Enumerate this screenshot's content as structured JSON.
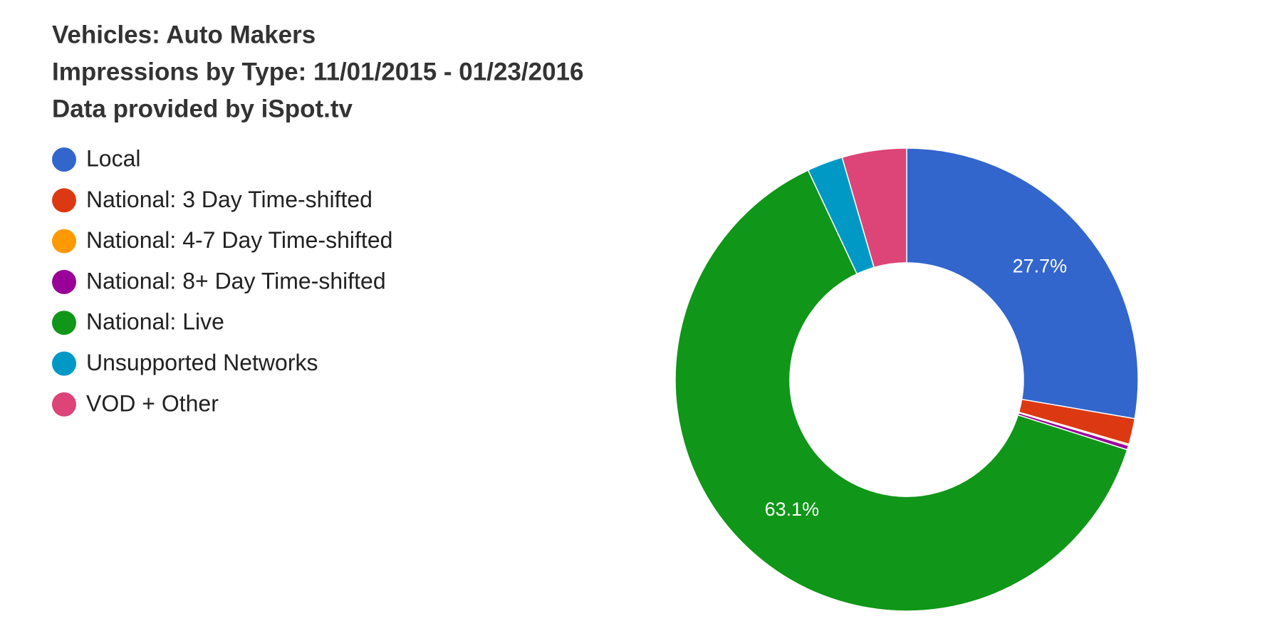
{
  "chart_data": {
    "type": "donut",
    "title": [
      "Vehicles: Auto Makers",
      "Impressions by Type: 11/01/2015 - 01/23/2016",
      "Data provided by iSpot.tv"
    ],
    "categories": [
      "Local",
      "National: 3 Day Time-shifted",
      "National: 4-7 Day Time-shifted",
      "National: 8+ Day Time-shifted",
      "National: Live",
      "Unsupported Networks",
      "VOD + Other"
    ],
    "values": [
      27.7,
      1.8,
      0.1,
      0.3,
      63.1,
      2.5,
      4.5
    ],
    "value_labels": [
      "27.7%",
      null,
      null,
      null,
      "63.1%",
      null,
      null
    ],
    "colors": [
      "#3366cc",
      "#dc3912",
      "#ff9900",
      "#990099",
      "#109618",
      "#0099c6",
      "#dd4477"
    ],
    "legend": "left"
  }
}
